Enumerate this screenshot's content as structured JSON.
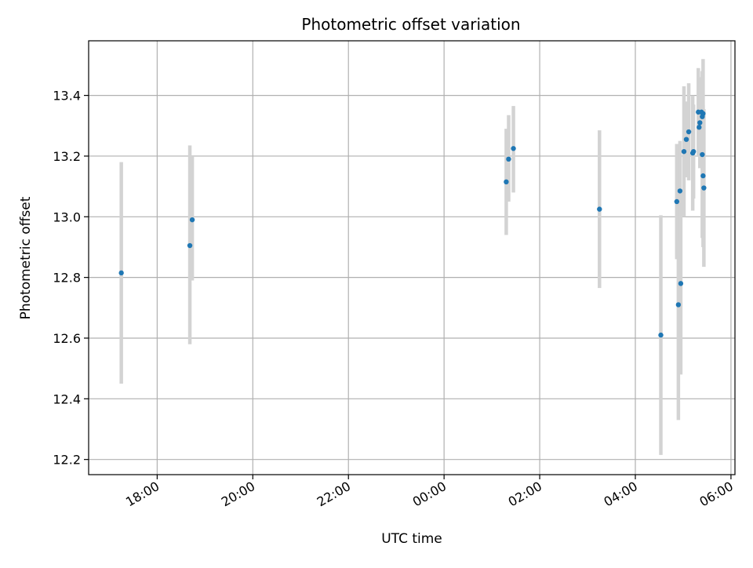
{
  "chart_data": {
    "type": "scatter",
    "title": "Photometric offset variation",
    "xlabel": "UTC time",
    "ylabel": "Photometric offset",
    "x_axis": {
      "kind": "time",
      "range": [
        "16:34",
        "06:05"
      ],
      "tick_labels": [
        "18:00",
        "20:00",
        "22:00",
        "00:00",
        "02:00",
        "04:00",
        "06:00"
      ]
    },
    "y_axis": {
      "range": [
        12.15,
        13.58
      ],
      "ticks": [
        12.2,
        12.4,
        12.6,
        12.8,
        13.0,
        13.2,
        13.4
      ],
      "tick_labels": [
        "12.2",
        "12.4",
        "12.6",
        "12.8",
        "13.0",
        "13.2",
        "13.4"
      ]
    },
    "grid": true,
    "colors": {
      "point": "#1f77b4",
      "errorbar": "#d3d3d3",
      "grid": "#b0b0b0"
    },
    "series": [
      {
        "points": [
          {
            "x": "17:15",
            "y": 12.815,
            "ylow": 12.45,
            "yhigh": 13.18
          },
          {
            "x": "18:41",
            "y": 12.905,
            "ylow": 12.58,
            "yhigh": 13.235
          },
          {
            "x": "18:44",
            "y": 12.99,
            "ylow": 12.79,
            "yhigh": 13.2
          },
          {
            "x": "01:18",
            "y": 13.115,
            "ylow": 12.94,
            "yhigh": 13.29
          },
          {
            "x": "01:21",
            "y": 13.19,
            "ylow": 13.05,
            "yhigh": 13.335
          },
          {
            "x": "01:27",
            "y": 13.225,
            "ylow": 13.08,
            "yhigh": 13.365
          },
          {
            "x": "03:15",
            "y": 13.025,
            "ylow": 12.765,
            "yhigh": 13.285
          },
          {
            "x": "04:32",
            "y": 12.61,
            "ylow": 12.215,
            "yhigh": 13.005
          },
          {
            "x": "04:52",
            "y": 13.05,
            "ylow": 12.86,
            "yhigh": 13.24
          },
          {
            "x": "04:54",
            "y": 12.71,
            "ylow": 12.33,
            "yhigh": 13.09
          },
          {
            "x": "04:56",
            "y": 13.085,
            "ylow": 12.92,
            "yhigh": 13.25
          },
          {
            "x": "04:57",
            "y": 12.78,
            "ylow": 12.48,
            "yhigh": 13.08
          },
          {
            "x": "05:01",
            "y": 13.215,
            "ylow": 13.0,
            "yhigh": 13.43
          },
          {
            "x": "05:04",
            "y": 13.255,
            "ylow": 13.13,
            "yhigh": 13.38
          },
          {
            "x": "05:07",
            "y": 13.28,
            "ylow": 13.12,
            "yhigh": 13.44
          },
          {
            "x": "05:12",
            "y": 13.21,
            "ylow": 13.02,
            "yhigh": 13.4
          },
          {
            "x": "05:13",
            "y": 13.215,
            "ylow": 13.06,
            "yhigh": 13.37
          },
          {
            "x": "05:19",
            "y": 13.345,
            "ylow": 13.2,
            "yhigh": 13.49
          },
          {
            "x": "05:20",
            "y": 13.295,
            "ylow": 13.2,
            "yhigh": 13.39
          },
          {
            "x": "05:21",
            "y": 13.31,
            "ylow": 13.16,
            "yhigh": 13.46
          },
          {
            "x": "05:23",
            "y": 13.345,
            "ylow": 13.24,
            "yhigh": 13.45
          },
          {
            "x": "05:24",
            "y": 13.33,
            "ylow": 13.2,
            "yhigh": 13.46
          },
          {
            "x": "05:24",
            "y": 13.205,
            "ylow": 12.93,
            "yhigh": 13.48
          },
          {
            "x": "05:25",
            "y": 13.34,
            "ylow": 13.16,
            "yhigh": 13.52
          },
          {
            "x": "05:25",
            "y": 13.135,
            "ylow": 12.9,
            "yhigh": 13.37
          },
          {
            "x": "05:26",
            "y": 13.095,
            "ylow": 12.835,
            "yhigh": 13.355
          }
        ]
      }
    ]
  }
}
